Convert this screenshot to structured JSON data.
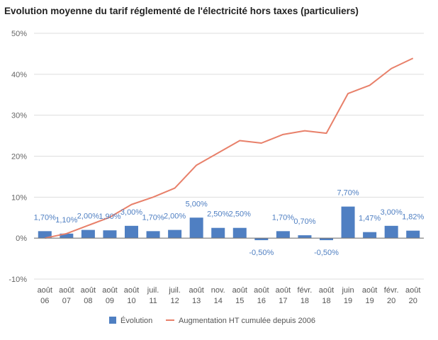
{
  "chart_data": {
    "type": "bar",
    "title": "Evolution moyenne du tarif réglementé de l'électricité hors taxes (particuliers)",
    "categories": [
      [
        "août",
        "06"
      ],
      [
        "août",
        "07"
      ],
      [
        "août",
        "08"
      ],
      [
        "août",
        "09"
      ],
      [
        "août",
        "10"
      ],
      [
        "juil.",
        "11"
      ],
      [
        "juil.",
        "12"
      ],
      [
        "août",
        "13"
      ],
      [
        "nov.",
        "14"
      ],
      [
        "août",
        "15"
      ],
      [
        "août",
        "16"
      ],
      [
        "août",
        "17"
      ],
      [
        "févr.",
        "18"
      ],
      [
        "août",
        "18"
      ],
      [
        "juin",
        "19"
      ],
      [
        "août",
        "19"
      ],
      [
        "févr.",
        "20"
      ],
      [
        "août",
        "20"
      ]
    ],
    "ylim": [
      -10,
      50
    ],
    "yticks": [
      -10,
      0,
      10,
      20,
      30,
      40,
      50
    ],
    "ytick_labels": [
      "-10%",
      "0%",
      "10%",
      "20%",
      "30%",
      "40%",
      "50%"
    ],
    "grid": true,
    "legend_position": "bottom",
    "series": [
      {
        "name": "Évolution",
        "type": "bar",
        "color": "#4f7fc2",
        "values": [
          1.7,
          1.1,
          2.0,
          1.9,
          3.0,
          1.7,
          2.0,
          5.0,
          2.5,
          2.5,
          -0.5,
          1.7,
          0.7,
          -0.5,
          7.7,
          1.47,
          3.0,
          1.82
        ],
        "labels": [
          "1,70%",
          "1,10%",
          "2,00%",
          "1,90%",
          "3,00%",
          "1,70%",
          "2,00%",
          "5,00%",
          "2,50%",
          "2,50%",
          "-0,50%",
          "1,70%",
          "0,70%",
          "-0,50%",
          "7,70%",
          "1,47%",
          "3,00%",
          "1,82%"
        ]
      },
      {
        "name": "Augmentation HT cumulée depuis 2006",
        "type": "line",
        "color": "#e8806a",
        "values": [
          0,
          1.1,
          3.1,
          5.1,
          8.2,
          10.0,
          12.2,
          17.8,
          20.8,
          23.8,
          23.2,
          25.3,
          26.2,
          25.6,
          35.3,
          37.3,
          41.4,
          43.9
        ]
      }
    ]
  }
}
